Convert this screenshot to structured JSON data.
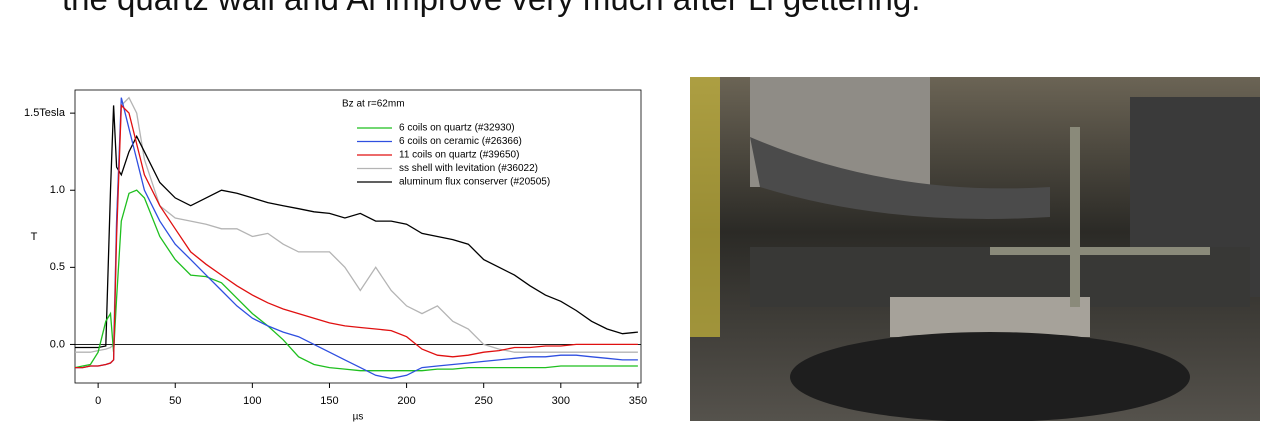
{
  "headline": "the quartz wall and Al improve very much after Li gettering.",
  "chart_data": {
    "type": "line",
    "legend_title": "Bz at r=62mm",
    "ylabel": "T",
    "xlabel": "µs",
    "xlim": [
      -15,
      352
    ],
    "ylim": [
      -0.25,
      1.65
    ],
    "xticks": [
      0,
      50,
      100,
      150,
      200,
      250,
      300,
      350
    ],
    "yticks": [
      {
        "value": 0,
        "label": "0.0"
      },
      0.5,
      {
        "value": 1,
        "label": "1.0"
      },
      {
        "value": 1.5,
        "label": "1.5Tesla"
      }
    ],
    "zero_line": true,
    "x": [
      -15,
      -10,
      -5,
      0,
      5,
      8,
      10,
      12,
      15,
      20,
      25,
      30,
      40,
      50,
      60,
      70,
      80,
      90,
      100,
      110,
      120,
      130,
      140,
      150,
      160,
      170,
      180,
      190,
      200,
      210,
      220,
      230,
      240,
      250,
      260,
      270,
      280,
      290,
      300,
      310,
      320,
      330,
      340,
      350
    ],
    "series": [
      {
        "name": "6 coils on quartz (#32930)",
        "color": "#1fbf1f",
        "values": [
          -0.15,
          -0.14,
          -0.13,
          -0.05,
          0.15,
          0.2,
          -0.05,
          0.3,
          0.8,
          0.98,
          1.0,
          0.95,
          0.7,
          0.55,
          0.45,
          0.44,
          0.4,
          0.3,
          0.2,
          0.12,
          0.03,
          -0.08,
          -0.13,
          -0.15,
          -0.16,
          -0.17,
          -0.17,
          -0.17,
          -0.17,
          -0.17,
          -0.16,
          -0.16,
          -0.15,
          -0.15,
          -0.15,
          -0.15,
          -0.15,
          -0.15,
          -0.14,
          -0.14,
          -0.14,
          -0.14,
          -0.14,
          -0.14
        ]
      },
      {
        "name": "6 coils on ceramic (#26366)",
        "color": "#2f4fe0",
        "values": [
          -0.15,
          -0.15,
          -0.14,
          -0.14,
          -0.13,
          -0.12,
          -0.1,
          0.8,
          1.6,
          1.4,
          1.2,
          1.0,
          0.8,
          0.65,
          0.55,
          0.45,
          0.35,
          0.25,
          0.17,
          0.12,
          0.08,
          0.05,
          0.0,
          -0.05,
          -0.1,
          -0.15,
          -0.2,
          -0.22,
          -0.2,
          -0.15,
          -0.14,
          -0.13,
          -0.12,
          -0.11,
          -0.1,
          -0.09,
          -0.08,
          -0.08,
          -0.07,
          -0.07,
          -0.08,
          -0.09,
          -0.1,
          -0.1
        ]
      },
      {
        "name": "11 coils on quartz (#39650)",
        "color": "#e01010",
        "values": [
          -0.15,
          -0.15,
          -0.14,
          -0.14,
          -0.13,
          -0.12,
          -0.1,
          0.7,
          1.55,
          1.5,
          1.3,
          1.1,
          0.9,
          0.75,
          0.6,
          0.52,
          0.45,
          0.38,
          0.32,
          0.27,
          0.23,
          0.2,
          0.17,
          0.14,
          0.12,
          0.11,
          0.1,
          0.09,
          0.05,
          -0.03,
          -0.07,
          -0.08,
          -0.07,
          -0.05,
          -0.04,
          -0.02,
          -0.02,
          -0.01,
          -0.01,
          0.0,
          0.0,
          0.0,
          0.0,
          0.0
        ]
      },
      {
        "name": "ss shell with levitation (#36022)",
        "color": "#b4b4b4",
        "values": [
          -0.05,
          -0.05,
          -0.05,
          -0.04,
          -0.03,
          -0.02,
          0.0,
          0.8,
          1.55,
          1.6,
          1.5,
          1.2,
          0.9,
          0.82,
          0.8,
          0.78,
          0.75,
          0.75,
          0.7,
          0.72,
          0.65,
          0.6,
          0.6,
          0.6,
          0.5,
          0.35,
          0.5,
          0.35,
          0.25,
          0.2,
          0.25,
          0.15,
          0.1,
          0.0,
          -0.03,
          -0.05,
          -0.05,
          -0.05,
          -0.05,
          -0.05,
          -0.05,
          -0.05,
          -0.05,
          -0.05
        ]
      },
      {
        "name": "aluminum flux conserver (#20505)",
        "color": "#000000",
        "values": [
          -0.02,
          -0.02,
          -0.02,
          -0.02,
          -0.01,
          1.0,
          1.55,
          1.15,
          1.1,
          1.25,
          1.35,
          1.25,
          1.05,
          0.95,
          0.9,
          0.95,
          1.0,
          0.98,
          0.95,
          0.92,
          0.9,
          0.88,
          0.86,
          0.85,
          0.82,
          0.85,
          0.8,
          0.8,
          0.78,
          0.72,
          0.7,
          0.68,
          0.65,
          0.55,
          0.5,
          0.45,
          0.38,
          0.32,
          0.28,
          0.22,
          0.15,
          0.1,
          0.07,
          0.08
        ]
      }
    ]
  }
}
